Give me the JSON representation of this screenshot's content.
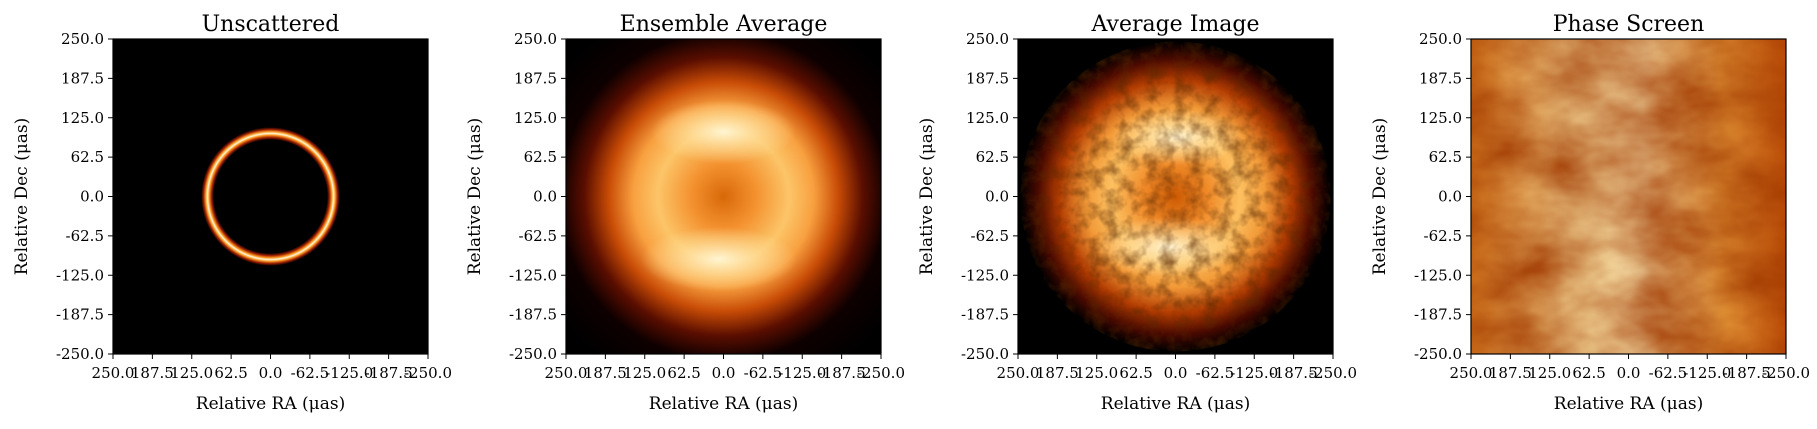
{
  "chart_data": [
    {
      "type": "heatmap",
      "title": "Unscattered",
      "xlabel": "Relative RA (μas)",
      "ylabel": "Relative Dec (μas)",
      "xlim": [
        250.0,
        -250.0
      ],
      "ylim": [
        -250.0,
        250.0
      ],
      "xticks": [
        "250.0",
        "187.5",
        "125.0",
        "62.5",
        "0.0",
        "-62.5",
        "-125.0",
        "-187.5",
        "-250.0"
      ],
      "yticks": [
        "250.0",
        "187.5",
        "125.0",
        "62.5",
        "0.0",
        "-62.5",
        "-125.0",
        "-187.5",
        "-250.0"
      ],
      "image": "sharp thin bright ring, radius ~100 μas, centered at 0,0",
      "colormap": "afmhot"
    },
    {
      "type": "heatmap",
      "title": "Ensemble Average",
      "xlabel": "Relative RA (μas)",
      "ylabel": "Relative Dec (μas)",
      "xlim": [
        250.0,
        -250.0
      ],
      "ylim": [
        -250.0,
        250.0
      ],
      "xticks": [
        "250.0",
        "187.5",
        "125.0",
        "62.5",
        "0.0",
        "-62.5",
        "-125.0",
        "-187.5",
        "-250.0"
      ],
      "yticks": [
        "250.0",
        "187.5",
        "125.0",
        "62.5",
        "0.0",
        "-62.5",
        "-125.0",
        "-187.5",
        "-250.0"
      ],
      "image": "smooth broadened ring, brighter top and bottom",
      "colormap": "afmhot"
    },
    {
      "type": "heatmap",
      "title": "Average Image",
      "xlabel": "Relative RA (μas)",
      "ylabel": "Relative Dec (μas)",
      "xlim": [
        250.0,
        -250.0
      ],
      "ylim": [
        -250.0,
        250.0
      ],
      "xticks": [
        "250.0",
        "187.5",
        "125.0",
        "62.5",
        "0.0",
        "-62.5",
        "-125.0",
        "-187.5",
        "-250.0"
      ],
      "yticks": [
        "250.0",
        "187.5",
        "125.0",
        "62.5",
        "0.0",
        "-62.5",
        "-125.0",
        "-187.5",
        "-250.0"
      ],
      "image": "mottled broadened ring with refractive substructure",
      "colormap": "afmhot"
    },
    {
      "type": "heatmap",
      "title": "Phase Screen",
      "xlabel": "Relative RA (μas)",
      "ylabel": "Relative Dec (μas)",
      "xlim": [
        250.0,
        -250.0
      ],
      "ylim": [
        -250.0,
        250.0
      ],
      "xticks": [
        "250.0",
        "187.5",
        "125.0",
        "62.5",
        "0.0",
        "-62.5",
        "-125.0",
        "-187.5",
        "-250.0"
      ],
      "yticks": [
        "250.0",
        "187.5",
        "125.0",
        "62.5",
        "0.0",
        "-62.5",
        "-125.0",
        "-187.5",
        "-250.0"
      ],
      "image": "random turbulent phase screen, mostly bright with darker patches on left and right",
      "colormap": "afmhot"
    }
  ]
}
